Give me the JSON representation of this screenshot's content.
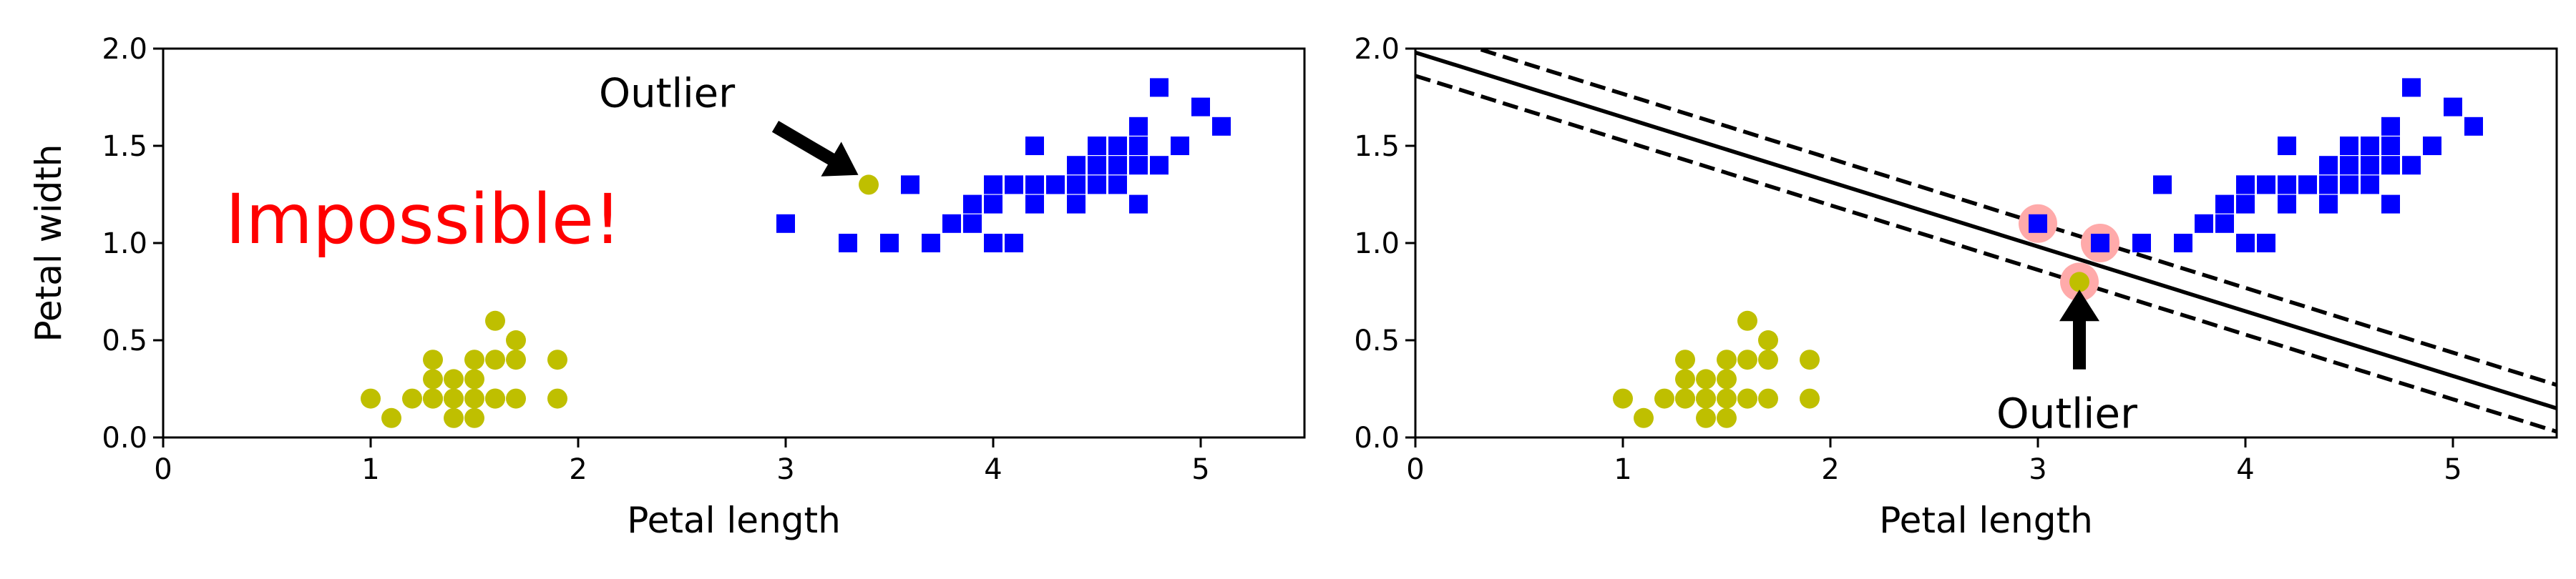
{
  "chart_data": [
    {
      "type": "scatter",
      "xlabel": "Petal length",
      "ylabel": "Petal width",
      "xlim": [
        0,
        5.5
      ],
      "ylim": [
        0,
        2.0
      ],
      "xticks": [
        "0",
        "1",
        "2",
        "3",
        "4",
        "5"
      ],
      "yticks": [
        "0.0",
        "0.5",
        "1.0",
        "1.5",
        "2.0"
      ],
      "grid": false,
      "series": [
        {
          "marker": "circle",
          "color": "#bfbf00",
          "x": [
            1.0,
            1.1,
            1.2,
            1.3,
            1.3,
            1.3,
            1.3,
            1.4,
            1.4,
            1.4,
            1.4,
            1.5,
            1.5,
            1.5,
            1.5,
            1.6,
            1.6,
            1.6,
            1.6,
            1.7,
            1.7,
            1.7,
            1.9,
            1.9
          ],
          "y": [
            0.2,
            0.1,
            0.2,
            0.2,
            0.3,
            0.4,
            0.2,
            0.1,
            0.2,
            0.3,
            0.2,
            0.1,
            0.2,
            0.3,
            0.4,
            0.2,
            0.4,
            0.6,
            0.2,
            0.2,
            0.4,
            0.5,
            0.2,
            0.4
          ]
        },
        {
          "marker": "square",
          "color": "#0000ff",
          "x": [
            3.0,
            3.3,
            3.5,
            3.6,
            3.7,
            3.8,
            3.9,
            3.9,
            4.0,
            4.0,
            4.0,
            4.0,
            4.1,
            4.1,
            4.2,
            4.2,
            4.2,
            4.3,
            4.3,
            4.4,
            4.4,
            4.4,
            4.5,
            4.5,
            4.5,
            4.6,
            4.6,
            4.6,
            4.7,
            4.7,
            4.7,
            4.7,
            4.8,
            4.8,
            4.9,
            4.9,
            5.0,
            5.1
          ],
          "y": [
            1.1,
            1.0,
            1.0,
            1.3,
            1.0,
            1.1,
            1.1,
            1.2,
            1.0,
            1.2,
            1.3,
            1.3,
            1.0,
            1.3,
            1.2,
            1.3,
            1.5,
            1.3,
            1.3,
            1.2,
            1.3,
            1.4,
            1.3,
            1.5,
            1.4,
            1.3,
            1.4,
            1.5,
            1.2,
            1.4,
            1.5,
            1.6,
            1.4,
            1.8,
            1.5,
            1.5,
            1.7,
            1.6
          ]
        },
        {
          "marker": "circle",
          "color": "#bfbf00",
          "x": [
            3.4
          ],
          "y": [
            1.3
          ]
        }
      ],
      "annotations": [
        {
          "text": "Outlier",
          "x": 2.1,
          "y": 1.7,
          "arrow_from": [
            2.95,
            1.6
          ],
          "arrow_to": [
            3.35,
            1.35
          ]
        },
        {
          "text": "Impossible!",
          "x": 0.3,
          "y": 1.0,
          "color": "#ff0000"
        }
      ]
    },
    {
      "type": "scatter",
      "xlabel": "Petal length",
      "ylabel": "",
      "xlim": [
        0,
        5.5
      ],
      "ylim": [
        0,
        2.0
      ],
      "xticks": [
        "0",
        "1",
        "2",
        "3",
        "4",
        "5"
      ],
      "yticks": [
        "0.0",
        "0.5",
        "1.0",
        "1.5",
        "2.0"
      ],
      "grid": false,
      "series": [
        {
          "marker": "circle",
          "color": "#bfbf00",
          "x": [
            1.0,
            1.1,
            1.2,
            1.3,
            1.3,
            1.3,
            1.3,
            1.4,
            1.4,
            1.4,
            1.4,
            1.5,
            1.5,
            1.5,
            1.5,
            1.6,
            1.6,
            1.6,
            1.6,
            1.7,
            1.7,
            1.7,
            1.9,
            1.9
          ],
          "y": [
            0.2,
            0.1,
            0.2,
            0.2,
            0.3,
            0.4,
            0.2,
            0.1,
            0.2,
            0.3,
            0.2,
            0.1,
            0.2,
            0.3,
            0.4,
            0.2,
            0.4,
            0.6,
            0.2,
            0.2,
            0.4,
            0.5,
            0.2,
            0.4
          ]
        },
        {
          "marker": "square",
          "color": "#0000ff",
          "x": [
            3.0,
            3.3,
            3.5,
            3.6,
            3.7,
            3.8,
            3.9,
            3.9,
            4.0,
            4.0,
            4.0,
            4.0,
            4.1,
            4.1,
            4.2,
            4.2,
            4.2,
            4.3,
            4.3,
            4.4,
            4.4,
            4.4,
            4.5,
            4.5,
            4.5,
            4.6,
            4.6,
            4.6,
            4.7,
            4.7,
            4.7,
            4.7,
            4.8,
            4.8,
            4.9,
            4.9,
            5.0,
            5.1
          ],
          "y": [
            1.1,
            1.0,
            1.0,
            1.3,
            1.0,
            1.1,
            1.1,
            1.2,
            1.0,
            1.2,
            1.3,
            1.3,
            1.0,
            1.3,
            1.2,
            1.3,
            1.5,
            1.3,
            1.3,
            1.2,
            1.3,
            1.4,
            1.3,
            1.5,
            1.4,
            1.3,
            1.4,
            1.5,
            1.2,
            1.4,
            1.5,
            1.6,
            1.4,
            1.8,
            1.5,
            1.5,
            1.7,
            1.6
          ]
        },
        {
          "marker": "circle",
          "color": "#bfbf00",
          "x": [
            3.2
          ],
          "y": [
            0.8
          ]
        }
      ],
      "support_vectors": {
        "color": "#ffaaaa",
        "x": [
          3.0,
          3.3,
          3.2
        ],
        "y": [
          1.1,
          1.0,
          0.8
        ]
      },
      "lines": [
        {
          "style": "solid",
          "x": [
            0,
            5.5
          ],
          "y": [
            1.98,
            0.15
          ]
        },
        {
          "style": "dashed",
          "x": [
            0,
            5.5
          ],
          "y": [
            2.1,
            0.27
          ]
        },
        {
          "style": "dashed",
          "x": [
            0,
            5.5
          ],
          "y": [
            1.86,
            0.03
          ]
        }
      ],
      "annotations": [
        {
          "text": "Outlier",
          "x": 2.8,
          "y": 0.05,
          "arrow_from": [
            3.2,
            0.35
          ],
          "arrow_to": [
            3.2,
            0.76
          ]
        }
      ]
    }
  ]
}
